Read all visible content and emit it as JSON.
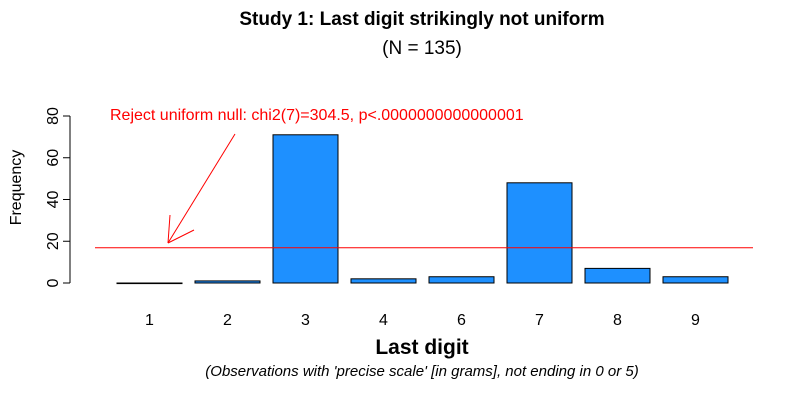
{
  "chart_data": {
    "type": "bar",
    "title": "Study 1: Last digit strikingly not uniform",
    "subtitle": "(N = 135)",
    "xlabel": "Last digit",
    "ylabel": "Frequency",
    "footnote": "(Observations with 'precise scale' [in grams], not ending in 0 or 5)",
    "categories": [
      "1",
      "2",
      "3",
      "4",
      "6",
      "7",
      "8",
      "9"
    ],
    "values": [
      0,
      1,
      71,
      2,
      3,
      48,
      7,
      3
    ],
    "ylim": [
      0,
      80
    ],
    "yticks": [
      0,
      20,
      40,
      60,
      80
    ],
    "bar_color": "#1E90FF",
    "reference_line": {
      "value": 16.875,
      "color": "#FF0000"
    },
    "annotation": {
      "text": "Reject uniform null: chi2(7)=304.5, p<.0000000000000001",
      "color": "#FF0000"
    },
    "grid": false,
    "legend": "none"
  }
}
